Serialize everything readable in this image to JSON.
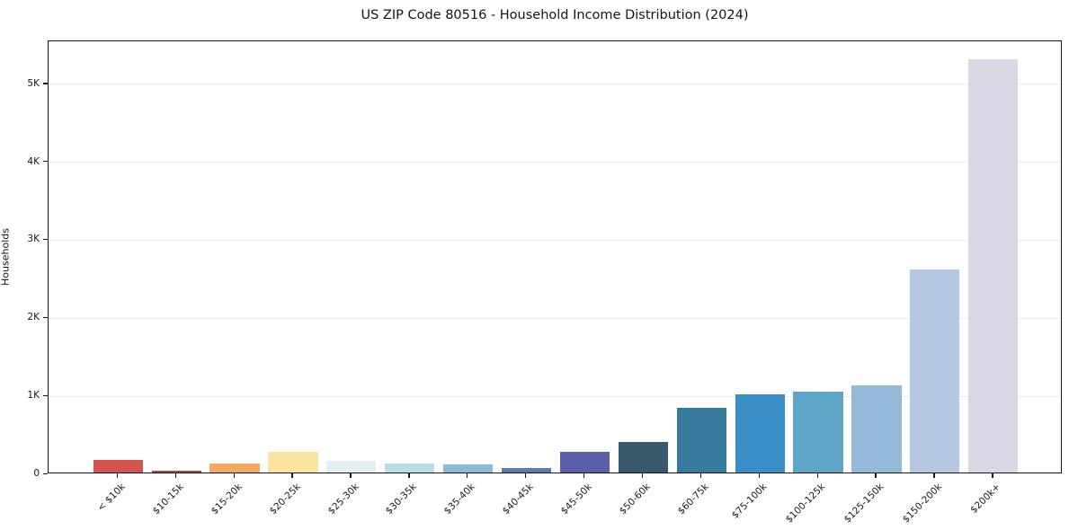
{
  "chart_data": {
    "type": "bar",
    "title": "US ZIP Code 80516 - Household Income Distribution (2024)",
    "xlabel": "",
    "ylabel": "Households",
    "categories": [
      "< $10k",
      "$10-15k",
      "$15-20k",
      "$20-25k",
      "$25-30k",
      "$30-35k",
      "$35-40k",
      "$40-45k",
      "$45-50k",
      "$50-60k",
      "$60-75k",
      "$75-100k",
      "$100-125k",
      "$125-150k",
      "$150-200k",
      "$200k+"
    ],
    "values": [
      160,
      25,
      110,
      265,
      150,
      115,
      105,
      55,
      265,
      390,
      830,
      1000,
      1040,
      1120,
      2600,
      5300
    ],
    "bar_colors": [
      "#d5544d",
      "#a25242",
      "#f5a95e",
      "#fce3a2",
      "#e3f0f2",
      "#badce8",
      "#8cbad9",
      "#567cb0",
      "#5b5fa9",
      "#38596c",
      "#377a9e",
      "#398ec5",
      "#5fa5c7",
      "#93bad8",
      "#b5c8e2",
      "#d7d8e3"
    ],
    "yticks": {
      "values": [
        0,
        1000,
        2000,
        3000,
        4000,
        5000
      ],
      "labels": [
        "0",
        "1K",
        "2K",
        "3K",
        "4K",
        "5K"
      ]
    },
    "ylim": [
      0,
      5550
    ],
    "grid": "horizontal-only",
    "gridline_color": "#eaeaee",
    "legend": "none",
    "background_color": "#ffffff",
    "frame_color": "#161616",
    "x_tick_label_rotation_deg": 45
  }
}
